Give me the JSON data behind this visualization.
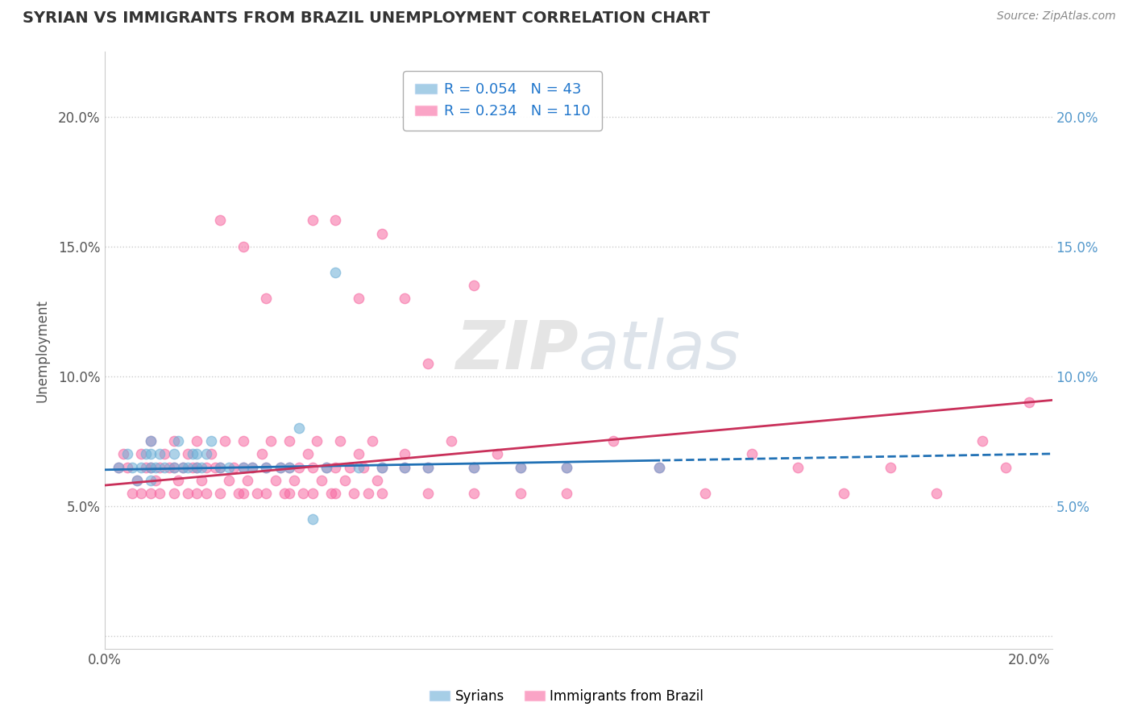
{
  "title": "SYRIAN VS IMMIGRANTS FROM BRAZIL UNEMPLOYMENT CORRELATION CHART",
  "source": "Source: ZipAtlas.com",
  "ylabel": "Unemployment",
  "watermark": "ZIPatlas",
  "legend_upper": {
    "syrians": {
      "R": 0.054,
      "N": 43,
      "color": "#6baed6"
    },
    "brazil": {
      "R": 0.234,
      "N": 110,
      "color": "#f768a1"
    }
  },
  "legend_lower": {
    "syrians_label": "Syrians",
    "brazil_label": "Immigrants from Brazil"
  },
  "xlim": [
    0.0,
    0.205
  ],
  "ylim": [
    -0.005,
    0.225
  ],
  "x_ticks": [
    0.0,
    0.05,
    0.1,
    0.15,
    0.2
  ],
  "y_ticks": [
    0.0,
    0.05,
    0.1,
    0.15,
    0.2
  ],
  "y_tick_labels_left": [
    "",
    "5.0%",
    "10.0%",
    "15.0%",
    "20.0%"
  ],
  "y_tick_labels_right": [
    "",
    "5.0%",
    "10.0%",
    "15.0%",
    "20.0%"
  ],
  "x_tick_labels": [
    "0.0%",
    "",
    "",
    "",
    "20.0%"
  ],
  "syrians_color": "#6baed6",
  "brazil_color": "#f768a1",
  "syrians_line_color": "#2171b5",
  "brazil_line_color": "#c9305a",
  "background_color": "#ffffff",
  "grid_color": "#cccccc",
  "scatter_alpha": 0.55,
  "scatter_size": 80,
  "syrians_x": [
    0.003,
    0.005,
    0.006,
    0.007,
    0.008,
    0.009,
    0.01,
    0.01,
    0.01,
    0.01,
    0.011,
    0.012,
    0.013,
    0.015,
    0.015,
    0.016,
    0.017,
    0.018,
    0.019,
    0.02,
    0.02,
    0.021,
    0.022,
    0.023,
    0.025,
    0.027,
    0.03,
    0.032,
    0.035,
    0.038,
    0.04,
    0.042,
    0.045,
    0.048,
    0.05,
    0.055,
    0.06,
    0.065,
    0.07,
    0.08,
    0.09,
    0.1,
    0.12
  ],
  "syrians_y": [
    0.065,
    0.07,
    0.065,
    0.06,
    0.065,
    0.07,
    0.065,
    0.07,
    0.075,
    0.06,
    0.065,
    0.07,
    0.065,
    0.065,
    0.07,
    0.075,
    0.065,
    0.065,
    0.07,
    0.065,
    0.07,
    0.065,
    0.07,
    0.075,
    0.065,
    0.065,
    0.065,
    0.065,
    0.065,
    0.065,
    0.065,
    0.08,
    0.045,
    0.065,
    0.14,
    0.065,
    0.065,
    0.065,
    0.065,
    0.065,
    0.065,
    0.065,
    0.065
  ],
  "brazil_x": [
    0.003,
    0.004,
    0.005,
    0.006,
    0.007,
    0.008,
    0.008,
    0.009,
    0.01,
    0.01,
    0.01,
    0.011,
    0.012,
    0.012,
    0.013,
    0.014,
    0.015,
    0.015,
    0.015,
    0.016,
    0.017,
    0.018,
    0.018,
    0.019,
    0.02,
    0.02,
    0.02,
    0.021,
    0.022,
    0.022,
    0.023,
    0.024,
    0.025,
    0.025,
    0.026,
    0.027,
    0.028,
    0.029,
    0.03,
    0.03,
    0.03,
    0.031,
    0.032,
    0.033,
    0.034,
    0.035,
    0.035,
    0.036,
    0.037,
    0.038,
    0.039,
    0.04,
    0.04,
    0.04,
    0.041,
    0.042,
    0.043,
    0.044,
    0.045,
    0.045,
    0.046,
    0.047,
    0.048,
    0.049,
    0.05,
    0.05,
    0.051,
    0.052,
    0.053,
    0.054,
    0.055,
    0.056,
    0.057,
    0.058,
    0.059,
    0.06,
    0.06,
    0.065,
    0.065,
    0.07,
    0.07,
    0.075,
    0.08,
    0.08,
    0.085,
    0.09,
    0.09,
    0.1,
    0.1,
    0.11,
    0.12,
    0.13,
    0.14,
    0.15,
    0.16,
    0.17,
    0.18,
    0.19,
    0.195,
    0.2,
    0.025,
    0.03,
    0.035,
    0.045,
    0.05,
    0.055,
    0.06,
    0.065,
    0.07,
    0.08
  ],
  "brazil_y": [
    0.065,
    0.07,
    0.065,
    0.055,
    0.06,
    0.055,
    0.07,
    0.065,
    0.065,
    0.055,
    0.075,
    0.06,
    0.065,
    0.055,
    0.07,
    0.065,
    0.065,
    0.055,
    0.075,
    0.06,
    0.065,
    0.055,
    0.07,
    0.065,
    0.065,
    0.055,
    0.075,
    0.06,
    0.065,
    0.055,
    0.07,
    0.065,
    0.065,
    0.055,
    0.075,
    0.06,
    0.065,
    0.055,
    0.065,
    0.055,
    0.075,
    0.06,
    0.065,
    0.055,
    0.07,
    0.065,
    0.055,
    0.075,
    0.06,
    0.065,
    0.055,
    0.065,
    0.055,
    0.075,
    0.06,
    0.065,
    0.055,
    0.07,
    0.065,
    0.055,
    0.075,
    0.06,
    0.065,
    0.055,
    0.065,
    0.055,
    0.075,
    0.06,
    0.065,
    0.055,
    0.07,
    0.065,
    0.055,
    0.075,
    0.06,
    0.065,
    0.055,
    0.07,
    0.065,
    0.065,
    0.055,
    0.075,
    0.065,
    0.055,
    0.07,
    0.065,
    0.055,
    0.065,
    0.055,
    0.075,
    0.065,
    0.055,
    0.07,
    0.065,
    0.055,
    0.065,
    0.055,
    0.075,
    0.065,
    0.09,
    0.16,
    0.15,
    0.13,
    0.16,
    0.16,
    0.13,
    0.155,
    0.13,
    0.105,
    0.135
  ]
}
